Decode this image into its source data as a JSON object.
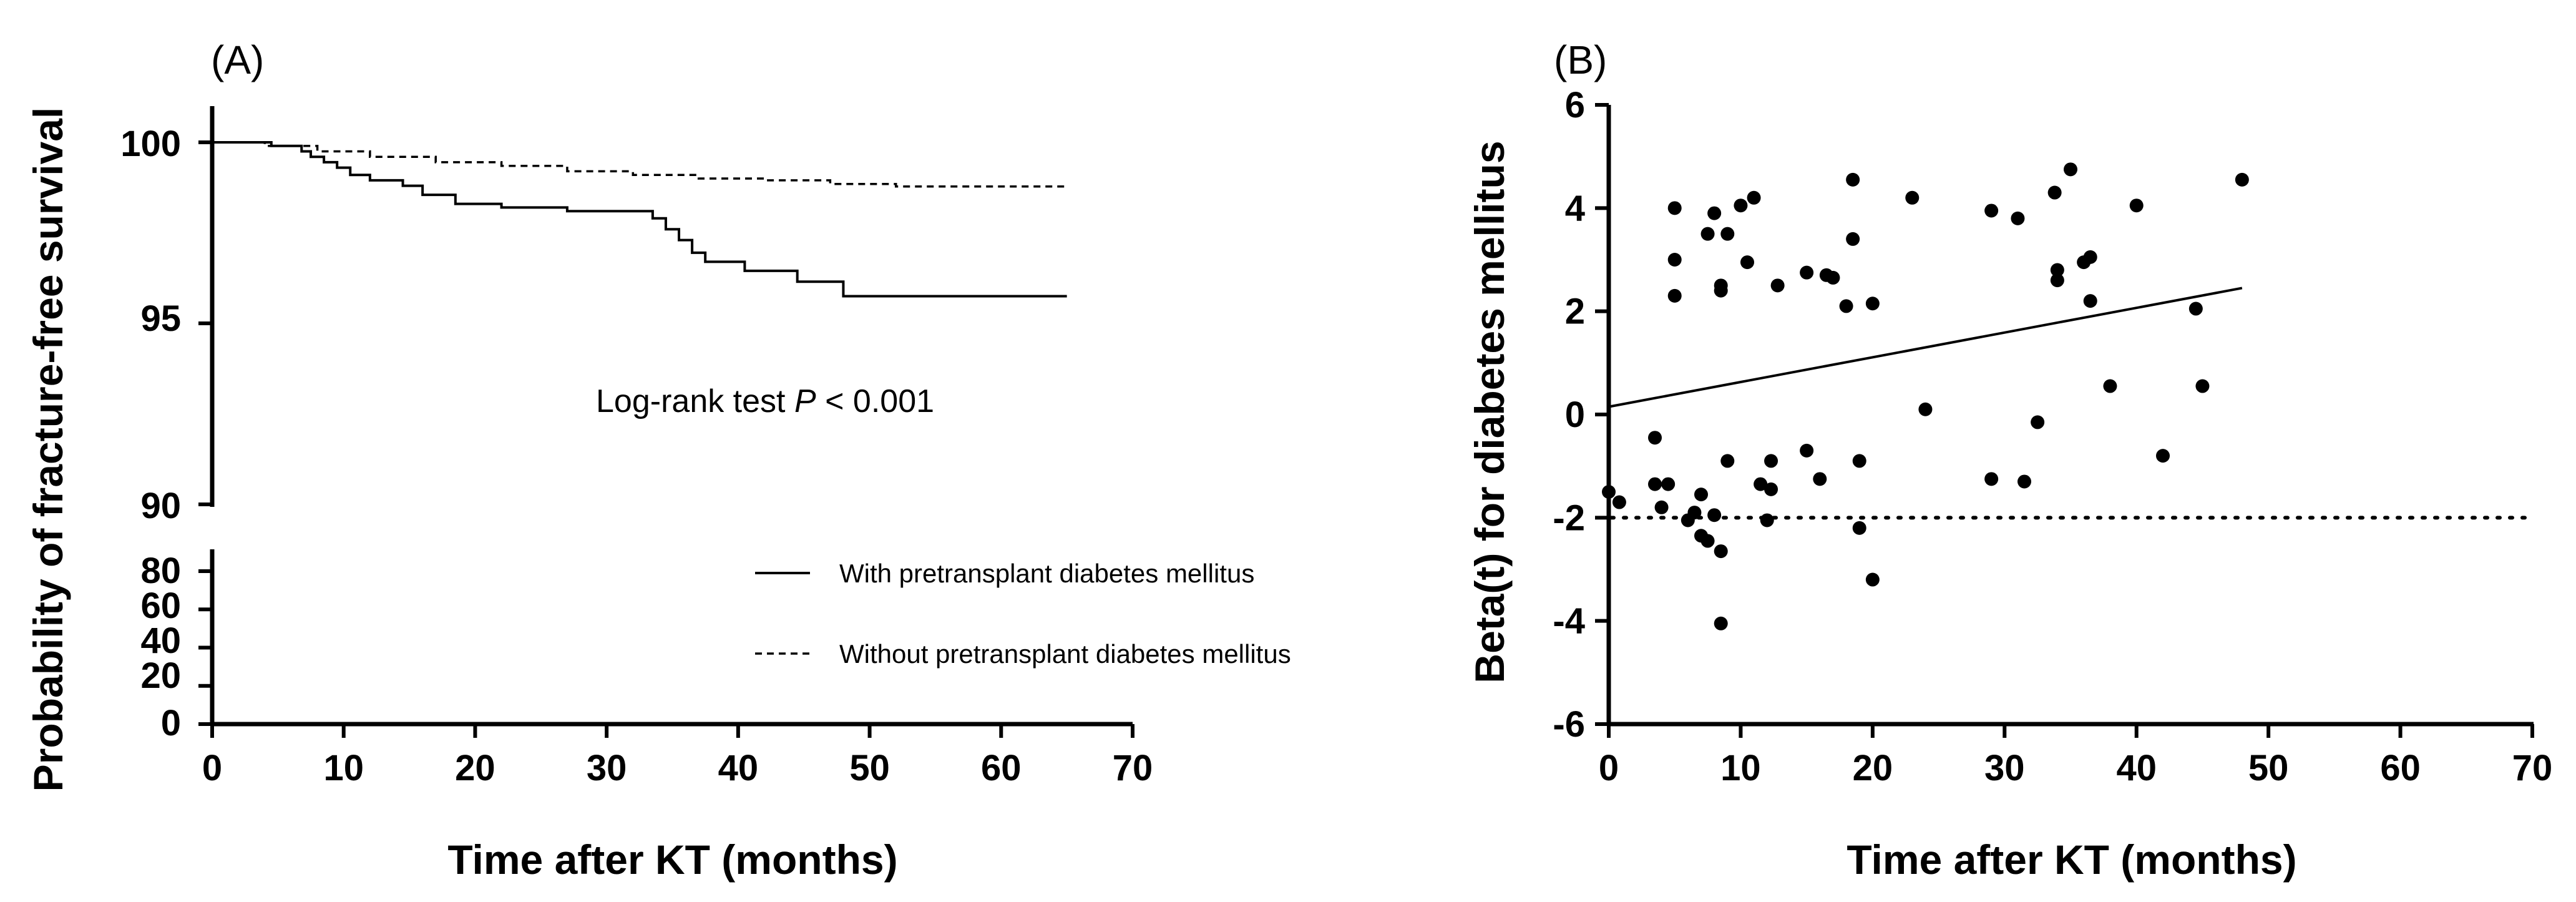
{
  "chart_data": [
    {
      "panel": "(A)",
      "type": "line",
      "chart_kind": "kaplan-meier",
      "ylabel": "Probability of fracture-free survival",
      "xlabel": "Time after KT (months)",
      "xlim": [
        0,
        70
      ],
      "x_ticks": [
        0,
        10,
        20,
        30,
        40,
        50,
        60,
        70
      ],
      "ylim_upper": [
        90,
        101
      ],
      "y_ticks_upper": [
        90,
        95,
        100
      ],
      "ylim_lower": [
        0,
        90
      ],
      "y_ticks_lower": [
        0,
        20,
        40,
        60,
        80
      ],
      "annotation_prefix": "Log-rank test ",
      "annotation_italic": "P",
      "annotation_suffix": " < 0.001",
      "series": [
        {
          "name": "With pretransplant diabetes mellitus",
          "style": "solid",
          "x": [
            0,
            4.5,
            6.8,
            7.5,
            8.5,
            9.5,
            10.5,
            12,
            14.5,
            16,
            18.5,
            22,
            27,
            33.5,
            34.5,
            35.5,
            36.5,
            37.5,
            40.5,
            44.5,
            48,
            65
          ],
          "y": [
            100,
            99.9,
            99.75,
            99.6,
            99.45,
            99.3,
            99.1,
            98.95,
            98.8,
            98.55,
            98.3,
            98.2,
            98.1,
            97.9,
            97.6,
            97.3,
            96.95,
            96.7,
            96.45,
            96.15,
            95.75,
            95.75
          ]
        },
        {
          "name": "Without pretransplant diabetes mellitus",
          "style": "dashed",
          "x": [
            0,
            4,
            8,
            12,
            17,
            22,
            27,
            32,
            37,
            42,
            47,
            52,
            65
          ],
          "y": [
            100,
            99.9,
            99.75,
            99.6,
            99.45,
            99.35,
            99.2,
            99.1,
            99.0,
            98.95,
            98.85,
            98.78,
            98.75
          ]
        }
      ]
    },
    {
      "panel": "(B)",
      "type": "scatter",
      "ylabel": "Beta(t) for diabetes mellitus",
      "xlabel": "Time after KT (months)",
      "xlim": [
        0,
        70
      ],
      "x_ticks": [
        0,
        10,
        20,
        30,
        40,
        50,
        60,
        70
      ],
      "ylim": [
        -6,
        6
      ],
      "y_ticks": [
        -6,
        -4,
        -2,
        0,
        2,
        4,
        6
      ],
      "reference_line_y": -2,
      "trend_line": {
        "x": [
          0,
          48
        ],
        "y": [
          0.15,
          2.45
        ]
      },
      "points": [
        [
          0,
          -1.5
        ],
        [
          0.8,
          -1.7
        ],
        [
          3.5,
          -0.45
        ],
        [
          3.5,
          -1.35
        ],
        [
          4,
          -1.8
        ],
        [
          4.5,
          -1.35
        ],
        [
          5,
          4.0
        ],
        [
          5,
          3.0
        ],
        [
          5,
          2.3
        ],
        [
          6,
          -2.05
        ],
        [
          6.5,
          -1.9
        ],
        [
          7,
          -1.55
        ],
        [
          7,
          -2.35
        ],
        [
          7.5,
          -2.45
        ],
        [
          7.5,
          3.5
        ],
        [
          8,
          3.9
        ],
        [
          8,
          -1.95
        ],
        [
          8.5,
          2.5
        ],
        [
          8.5,
          2.4
        ],
        [
          8.5,
          -2.65
        ],
        [
          8.5,
          -4.05
        ],
        [
          9,
          3.5
        ],
        [
          9,
          -0.9
        ],
        [
          10,
          4.05
        ],
        [
          10.5,
          2.95
        ],
        [
          11,
          4.2
        ],
        [
          11.5,
          -1.35
        ],
        [
          12,
          -2.05
        ],
        [
          12.3,
          -0.9
        ],
        [
          12.3,
          -1.45
        ],
        [
          12.8,
          2.5
        ],
        [
          15,
          2.75
        ],
        [
          15,
          -0.7
        ],
        [
          16,
          -1.25
        ],
        [
          16.5,
          2.7
        ],
        [
          17,
          2.65
        ],
        [
          18,
          2.1
        ],
        [
          18.5,
          3.4
        ],
        [
          18.5,
          4.55
        ],
        [
          19,
          -0.9
        ],
        [
          19,
          -2.2
        ],
        [
          20,
          2.15
        ],
        [
          20,
          -3.2
        ],
        [
          23,
          4.2
        ],
        [
          24,
          0.1
        ],
        [
          29,
          3.95
        ],
        [
          29,
          -1.25
        ],
        [
          31,
          3.8
        ],
        [
          31.5,
          -1.3
        ],
        [
          32.5,
          -0.15
        ],
        [
          33.8,
          4.3
        ],
        [
          34,
          2.8
        ],
        [
          34,
          2.6
        ],
        [
          35,
          4.75
        ],
        [
          36,
          2.95
        ],
        [
          36.5,
          3.05
        ],
        [
          36.5,
          2.2
        ],
        [
          38,
          0.55
        ],
        [
          40,
          4.05
        ],
        [
          42,
          -0.8
        ],
        [
          44.5,
          2.05
        ],
        [
          45,
          0.55
        ],
        [
          48,
          4.55
        ]
      ]
    }
  ]
}
